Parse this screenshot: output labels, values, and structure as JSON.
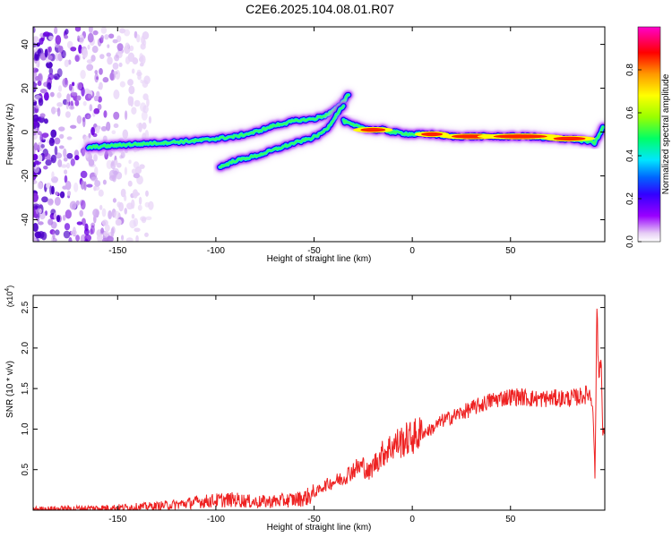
{
  "title": "C2E6.2025.104.08.01.R07",
  "chart_data": [
    {
      "type": "heatmap",
      "xlabel": "Height of straight line (km)",
      "ylabel": "Frequency (Hz)",
      "xlim": [
        -193,
        98
      ],
      "ylim": [
        -50,
        48
      ],
      "xticks": [
        -150,
        -100,
        -50,
        0,
        50
      ],
      "yticks": [
        -40,
        -20,
        0,
        20,
        40
      ],
      "colorbar": {
        "label": "Normalized spectral amplitude",
        "range": [
          0,
          1
        ],
        "ticks": [
          0.0,
          0.2,
          0.4,
          0.6,
          0.8
        ],
        "colors": [
          "#ffffff",
          "#e6ccf5",
          "#9900ff",
          "#3300ff",
          "#0066ff",
          "#00e6ff",
          "#00ff66",
          "#99ff00",
          "#ffff00",
          "#ff9900",
          "#ff0000",
          "#ff00cc"
        ]
      },
      "ridges": [
        {
          "x": [
            -165,
            -150,
            -130,
            -110,
            -100,
            -90,
            -80,
            -70,
            -60,
            -50,
            -43,
            -38,
            -35,
            -32
          ],
          "y": [
            -7,
            -6,
            -5,
            -4,
            -3,
            -2,
            0,
            3,
            5,
            6,
            8,
            11,
            14,
            18
          ]
        },
        {
          "x": [
            -98,
            -90,
            -80,
            -70,
            -60,
            -52,
            -47,
            -43,
            -40,
            -37,
            -35
          ],
          "y": [
            -16,
            -13,
            -11,
            -8,
            -5,
            -3,
            -1,
            2,
            6,
            10,
            12
          ]
        },
        {
          "x": [
            -35,
            -30,
            -25,
            -20,
            -15,
            -10,
            0,
            10,
            20,
            30,
            40,
            50,
            60,
            70,
            80,
            88,
            93,
            97
          ],
          "y": [
            5,
            3,
            2,
            1,
            1,
            0,
            -1,
            -1,
            -2,
            -2,
            -2,
            -2,
            -2,
            -3,
            -3,
            -4,
            -5,
            2
          ]
        }
      ]
    },
    {
      "type": "line",
      "xlabel": "Height of straight line (km)",
      "ylabel": "SNR (10 * v/v)",
      "multiplier": "(x10",
      "multiplier_exp": "4",
      "multiplier_close": ")",
      "xlim": [
        -193,
        98
      ],
      "ylim": [
        0,
        2.65
      ],
      "xticks": [
        -150,
        -100,
        -50,
        0,
        50
      ],
      "yticks": [
        0.5,
        1.0,
        1.5,
        2.0,
        2.5
      ],
      "color": "#ee2222",
      "series": [
        {
          "x": [
            -193,
            -170,
            -150,
            -130,
            -120,
            -110,
            -100,
            -90,
            -80,
            -70,
            -60,
            -55,
            -50,
            -45,
            -40,
            -35,
            -30,
            -25,
            -22,
            -20,
            -15,
            -10,
            -5,
            0,
            5,
            10,
            15,
            20,
            25,
            30,
            35,
            40,
            45,
            50,
            55,
            60,
            65,
            70,
            75,
            80,
            85,
            88,
            90,
            92,
            93,
            94,
            95,
            96,
            97,
            98
          ],
          "y": [
            0.01,
            0.02,
            0.03,
            0.05,
            0.07,
            0.1,
            0.12,
            0.13,
            0.1,
            0.11,
            0.13,
            0.15,
            0.2,
            0.3,
            0.35,
            0.4,
            0.5,
            0.55,
            0.45,
            0.55,
            0.7,
            0.8,
            0.85,
            0.9,
            0.95,
            1.0,
            1.1,
            1.15,
            1.2,
            1.25,
            1.3,
            1.35,
            1.38,
            1.4,
            1.4,
            1.38,
            1.37,
            1.38,
            1.38,
            1.38,
            1.4,
            1.42,
            1.45,
            1.3,
            0.4,
            2.5,
            1.6,
            2.0,
            0.9,
            1.0
          ]
        }
      ]
    }
  ]
}
